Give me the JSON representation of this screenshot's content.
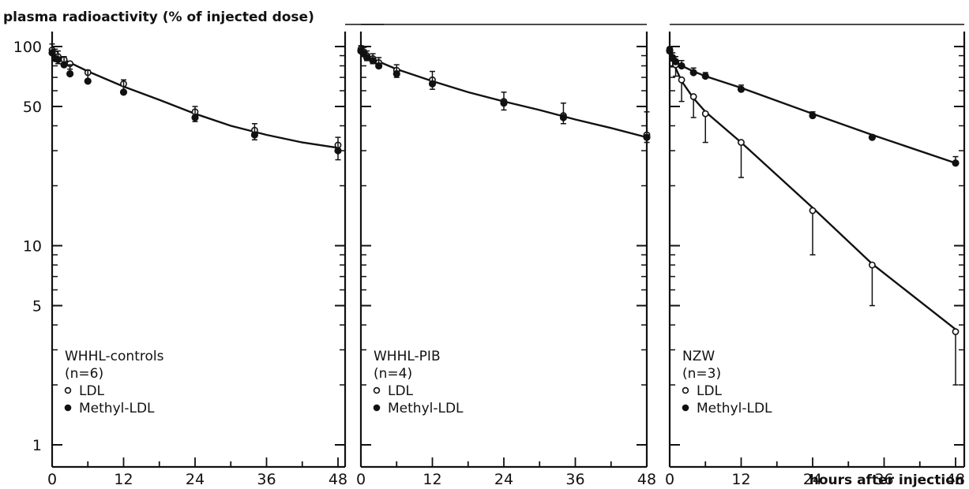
{
  "figure": {
    "ylabel": "plasma radioactivity (% of injected dose)",
    "xlabel": "hours after injection",
    "y_tick_labels": [
      "100",
      "50",
      "10",
      "5",
      "1"
    ],
    "x_tick_labels": [
      "0",
      "12",
      "24",
      "36",
      "48"
    ]
  },
  "chart_data": [
    {
      "type": "scatter",
      "panel_label": "WHHL-controls",
      "n_label": "(n=6)",
      "y_scale": "log",
      "xlim": [
        0,
        48
      ],
      "ylim": [
        1,
        100
      ],
      "x_ticks": [
        0,
        12,
        24,
        36,
        48
      ],
      "y_ticks": [
        1,
        5,
        10,
        50,
        100
      ],
      "series": [
        {
          "name": "LDL",
          "marker": "open-circle",
          "points": [
            {
              "x": 0,
              "y": 96,
              "err": 4
            },
            {
              "x": 0.5,
              "y": 92,
              "err": 7
            },
            {
              "x": 1,
              "y": 89,
              "err": 7
            },
            {
              "x": 2,
              "y": 86,
              "err": 6
            },
            {
              "x": 3,
              "y": 82,
              "err": 5
            },
            {
              "x": 6,
              "y": 74,
              "err": 6
            },
            {
              "x": 12,
              "y": 65,
              "err": 6
            },
            {
              "x": 24,
              "y": 47,
              "err": 5
            },
            {
              "x": 34,
              "y": 38,
              "err": 4
            },
            {
              "x": 48,
              "y": 32,
              "err": 5
            }
          ]
        },
        {
          "name": "Methyl-LDL",
          "marker": "filled-circle",
          "points": [
            {
              "x": 0,
              "y": 93,
              "err": 10
            },
            {
              "x": 0.5,
              "y": 87,
              "err": 10
            },
            {
              "x": 1,
              "y": 86,
              "err": 9
            },
            {
              "x": 2,
              "y": 81,
              "err": 8
            },
            {
              "x": 3,
              "y": 73,
              "err": 8
            },
            {
              "x": 6,
              "y": 67,
              "err": 9
            },
            {
              "x": 12,
              "y": 59,
              "err": 9
            },
            {
              "x": 24,
              "y": 44,
              "err": 6
            },
            {
              "x": 34,
              "y": 36,
              "err": 5
            },
            {
              "x": 48,
              "y": 30,
              "err": 5
            }
          ]
        }
      ],
      "fit_curve": [
        [
          0,
          97
        ],
        [
          1,
          90
        ],
        [
          2,
          86
        ],
        [
          3,
          83
        ],
        [
          6,
          75
        ],
        [
          12,
          63
        ],
        [
          18,
          54
        ],
        [
          24,
          46
        ],
        [
          30,
          40
        ],
        [
          36,
          36
        ],
        [
          42,
          33
        ],
        [
          48,
          31
        ]
      ]
    },
    {
      "type": "scatter",
      "panel_label": "WHHL-PIB",
      "n_label": "(n=4)",
      "y_scale": "log",
      "xlim": [
        0,
        48
      ],
      "ylim": [
        1,
        100
      ],
      "x_ticks": [
        0,
        12,
        24,
        36,
        48
      ],
      "y_ticks": [
        1,
        5,
        10,
        50,
        100
      ],
      "series": [
        {
          "name": "LDL",
          "marker": "open-circle",
          "points": [
            {
              "x": 0,
              "y": 97,
              "err": 4
            },
            {
              "x": 0.5,
              "y": 94,
              "err": 5
            },
            {
              "x": 1,
              "y": 90,
              "err": 5
            },
            {
              "x": 2,
              "y": 87,
              "err": 5
            },
            {
              "x": 3,
              "y": 83,
              "err": 5
            },
            {
              "x": 6,
              "y": 76,
              "err": 6
            },
            {
              "x": 12,
              "y": 68,
              "err": 7
            },
            {
              "x": 24,
              "y": 53,
              "err": 5
            },
            {
              "x": 34,
              "y": 45,
              "err": 4
            },
            {
              "x": 48,
              "y": 36,
              "err": 3
            }
          ]
        },
        {
          "name": "Methyl-LDL",
          "marker": "filled-circle",
          "points": [
            {
              "x": 0,
              "y": 95,
              "err": 6
            },
            {
              "x": 0.5,
              "y": 92,
              "err": 7
            },
            {
              "x": 1,
              "y": 88,
              "err": 7
            },
            {
              "x": 2,
              "y": 85,
              "err": 7
            },
            {
              "x": 3,
              "y": 80,
              "err": 8
            },
            {
              "x": 6,
              "y": 73,
              "err": 8
            },
            {
              "x": 12,
              "y": 65,
              "err": 10
            },
            {
              "x": 24,
              "y": 52,
              "err": 7
            },
            {
              "x": 34,
              "y": 44,
              "err": 8
            },
            {
              "x": 48,
              "y": 35,
              "err": 12
            }
          ]
        }
      ],
      "fit_curve": [
        [
          0,
          97
        ],
        [
          1,
          91
        ],
        [
          2,
          87
        ],
        [
          3,
          84
        ],
        [
          6,
          77
        ],
        [
          12,
          67
        ],
        [
          18,
          59
        ],
        [
          24,
          53
        ],
        [
          30,
          48
        ],
        [
          36,
          43
        ],
        [
          42,
          39
        ],
        [
          48,
          35
        ]
      ]
    },
    {
      "type": "scatter",
      "panel_label": "NZW",
      "n_label": "(n=3)",
      "y_scale": "log",
      "xlim": [
        0,
        48
      ],
      "ylim": [
        1,
        100
      ],
      "x_ticks": [
        0,
        12,
        24,
        36,
        48
      ],
      "y_ticks": [
        1,
        5,
        10,
        50,
        100
      ],
      "series": [
        {
          "name": "LDL",
          "marker": "open-circle",
          "points": [
            {
              "x": 0,
              "y": 97,
              "err": 3
            },
            {
              "x": 0.5,
              "y": 87,
              "err": 8
            },
            {
              "x": 1,
              "y": 81,
              "err": 10
            },
            {
              "x": 2,
              "y": 68,
              "err": 15
            },
            {
              "x": 4,
              "y": 56,
              "err": 12
            },
            {
              "x": 6,
              "y": 46,
              "err": 13
            },
            {
              "x": 12,
              "y": 33,
              "err": 11
            },
            {
              "x": 24,
              "y": 15,
              "err": 6
            },
            {
              "x": 34,
              "y": 8,
              "err": 3
            },
            {
              "x": 48,
              "y": 3.7,
              "err": 1.7
            }
          ]
        },
        {
          "name": "Methyl-LDL",
          "marker": "filled-circle",
          "points": [
            {
              "x": 0,
              "y": 95,
              "err": 4
            },
            {
              "x": 0.5,
              "y": 88,
              "err": 5
            },
            {
              "x": 1,
              "y": 84,
              "err": 5
            },
            {
              "x": 2,
              "y": 80,
              "err": 5
            },
            {
              "x": 4,
              "y": 74,
              "err": 4
            },
            {
              "x": 6,
              "y": 71,
              "err": 3
            },
            {
              "x": 12,
              "y": 61,
              "err": 3
            },
            {
              "x": 24,
              "y": 45,
              "err": 2
            },
            {
              "x": 34,
              "y": 35,
              "err": 1
            },
            {
              "x": 48,
              "y": 26,
              "err": 2
            }
          ]
        }
      ],
      "fit_curve": [
        [
          0,
          97
        ],
        [
          1,
          84
        ],
        [
          2,
          80
        ],
        [
          4,
          75
        ],
        [
          6,
          71
        ],
        [
          12,
          62
        ],
        [
          24,
          46
        ],
        [
          34,
          36
        ],
        [
          48,
          26
        ]
      ],
      "fit_curve_2": [
        [
          0,
          97
        ],
        [
          0.5,
          86
        ],
        [
          1,
          78
        ],
        [
          2,
          67
        ],
        [
          4,
          55
        ],
        [
          6,
          47
        ],
        [
          12,
          33
        ],
        [
          24,
          15.5
        ],
        [
          34,
          8.1
        ],
        [
          48,
          3.8
        ]
      ]
    }
  ]
}
